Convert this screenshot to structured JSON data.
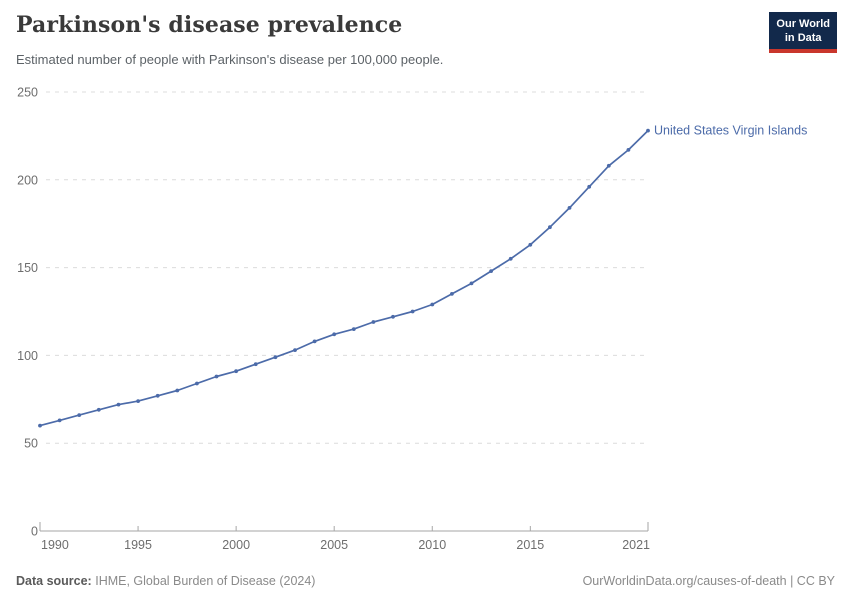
{
  "header": {
    "title": "Parkinson's disease prevalence",
    "subtitle": "Estimated number of people with Parkinson's disease per 100,000 people.",
    "logo": {
      "line1": "Our World",
      "line2": "in Data",
      "bg_color": "#12294b",
      "accent_color": "#c9362c"
    }
  },
  "footer": {
    "data_source_label": "Data source:",
    "data_source_value": "IHME, Global Burden of Disease (2024)",
    "attribution": "OurWorldinData.org/causes-of-death | CC BY"
  },
  "chart_data": {
    "type": "line",
    "title": "Parkinson's disease prevalence",
    "subtitle": "Estimated number of people with Parkinson's disease per 100,000 people.",
    "xlabel": "",
    "ylabel": "",
    "xlim": [
      1990,
      2021
    ],
    "ylim": [
      0,
      250
    ],
    "xticks": [
      1990,
      1995,
      2000,
      2005,
      2010,
      2015,
      2021
    ],
    "yticks": [
      0,
      50,
      100,
      150,
      200,
      250
    ],
    "grid": "horizontal-dashed",
    "legend": "end-of-line-label",
    "colors": {
      "line": "#4c6ba9",
      "grid": "#dcdcdc",
      "axis": "#a6a6a6",
      "tick_text": "#6e6e6e"
    },
    "series": [
      {
        "name": "United States Virgin Islands",
        "color": "#4c6ba9",
        "x": [
          1990,
          1991,
          1992,
          1993,
          1994,
          1995,
          1996,
          1997,
          1998,
          1999,
          2000,
          2001,
          2002,
          2003,
          2004,
          2005,
          2006,
          2007,
          2008,
          2009,
          2010,
          2011,
          2012,
          2013,
          2014,
          2015,
          2016,
          2017,
          2018,
          2019,
          2020,
          2021
        ],
        "values": [
          60,
          63,
          66,
          69,
          72,
          74,
          77,
          80,
          84,
          88,
          91,
          95,
          99,
          103,
          108,
          112,
          115,
          119,
          122,
          125,
          129,
          135,
          141,
          148,
          155,
          163,
          173,
          184,
          196,
          208,
          217,
          228
        ]
      }
    ]
  }
}
